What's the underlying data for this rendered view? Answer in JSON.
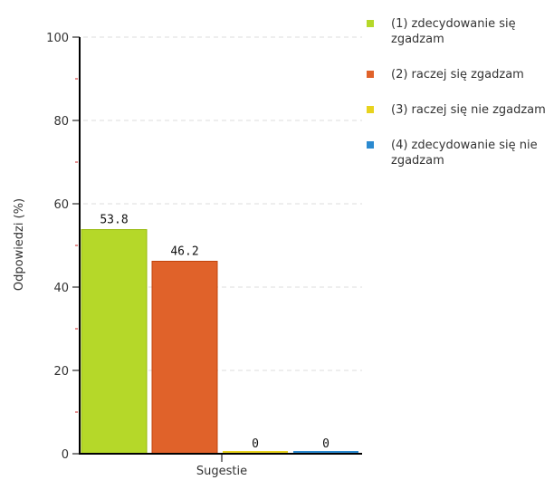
{
  "chart_data": {
    "type": "bar",
    "categories": [
      "Sugestie"
    ],
    "series": [
      {
        "name": "(1) zdecydowanie się zgadzam",
        "values": [
          53.8
        ],
        "label": "53.8",
        "color": "#b5d829"
      },
      {
        "name": "(2) raczej się zgadzam",
        "values": [
          46.2
        ],
        "label": "46.2",
        "color": "#e0622a"
      },
      {
        "name": "(3) raczej się nie zgadzam",
        "values": [
          0
        ],
        "label": "0",
        "color": "#e8d31e"
      },
      {
        "name": "(4) zdecydowanie się nie zgadzam",
        "values": [
          0
        ],
        "label": "0",
        "color": "#2b8ad0"
      }
    ],
    "xlabel": "Sugestie",
    "ylabel": "Odpowiedzi (%)",
    "ylim": [
      0,
      100
    ],
    "yticks": [
      0,
      20,
      40,
      60,
      80,
      100
    ],
    "grid": true,
    "legend_position": "right"
  }
}
